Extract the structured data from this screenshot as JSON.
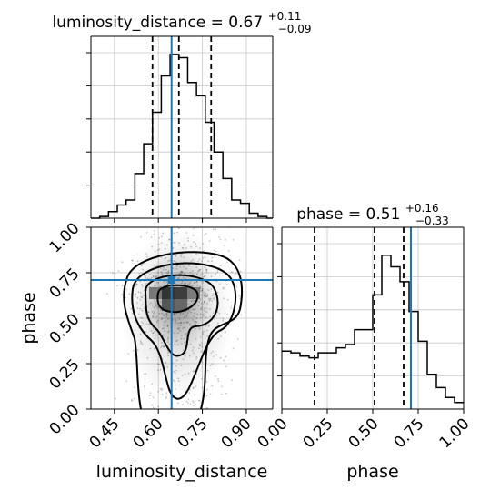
{
  "chart_data": {
    "type": "corner",
    "parameters": [
      "luminosity_distance",
      "phase"
    ],
    "truth_color": "#1f77b4",
    "line_color": "#000000",
    "panels": [
      {
        "id": "hist-luminosity_distance",
        "type": "histogram",
        "title": {
          "text": "luminosity_distance = 0.67",
          "sup": "+0.11",
          "sub": "−0.09"
        },
        "xlim": [
          0.37,
          0.99
        ],
        "ymax": 1.0,
        "quantile_lines": [
          0.58,
          0.67,
          0.78
        ],
        "truth": 0.645,
        "bin_edges": [
          0.37,
          0.4,
          0.43,
          0.46,
          0.49,
          0.52,
          0.55,
          0.58,
          0.61,
          0.64,
          0.67,
          0.7,
          0.73,
          0.76,
          0.79,
          0.82,
          0.85,
          0.88,
          0.91,
          0.94,
          0.97,
          0.99
        ],
        "heights": [
          0.0,
          0.01,
          0.04,
          0.08,
          0.11,
          0.27,
          0.45,
          0.64,
          0.86,
          0.99,
          0.97,
          0.82,
          0.74,
          0.58,
          0.4,
          0.24,
          0.11,
          0.09,
          0.03,
          0.01,
          0.0
        ]
      },
      {
        "id": "hist-phase",
        "type": "histogram",
        "title": {
          "text": "phase = 0.51",
          "sup": "+0.16",
          "sub": "−0.33"
        },
        "xlim": [
          0.0,
          1.0
        ],
        "ymax": 1.0,
        "quantile_lines": [
          0.18,
          0.51,
          0.67
        ],
        "truth": 0.71,
        "bin_edges": [
          0.0,
          0.05,
          0.1,
          0.15,
          0.2,
          0.25,
          0.3,
          0.35,
          0.4,
          0.45,
          0.5,
          0.55,
          0.6,
          0.65,
          0.7,
          0.75,
          0.8,
          0.85,
          0.9,
          0.95,
          1.0
        ],
        "heights": [
          0.35,
          0.34,
          0.32,
          0.31,
          0.34,
          0.34,
          0.37,
          0.39,
          0.48,
          0.48,
          0.69,
          0.93,
          0.86,
          0.77,
          0.59,
          0.41,
          0.21,
          0.13,
          0.07,
          0.04
        ]
      },
      {
        "id": "density-luminosity_distance-phase",
        "type": "2d-density",
        "xlim": [
          0.37,
          0.99
        ],
        "ylim": [
          0.0,
          1.0
        ],
        "truth": [
          0.645,
          0.71
        ],
        "truth_marker": true
      }
    ],
    "axes": {
      "x_bottom_left": {
        "label": "luminosity_distance",
        "ticks": [
          0.45,
          0.6,
          0.75,
          0.9
        ],
        "tick_labels": [
          "0.45",
          "0.60",
          "0.75",
          "0.90"
        ]
      },
      "x_bottom_right": {
        "label": "phase",
        "ticks": [
          0.0,
          0.25,
          0.5,
          0.75,
          1.0
        ],
        "tick_labels": [
          "0.00",
          "0.25",
          "0.50",
          "0.75",
          "1.00"
        ]
      },
      "y_left": {
        "label": "phase",
        "ticks": [
          0.0,
          0.25,
          0.5,
          0.75,
          1.0
        ],
        "tick_labels": [
          "0.00",
          "0.25",
          "0.50",
          "0.75",
          "1.00"
        ]
      }
    },
    "grid": true,
    "legend": "none"
  }
}
